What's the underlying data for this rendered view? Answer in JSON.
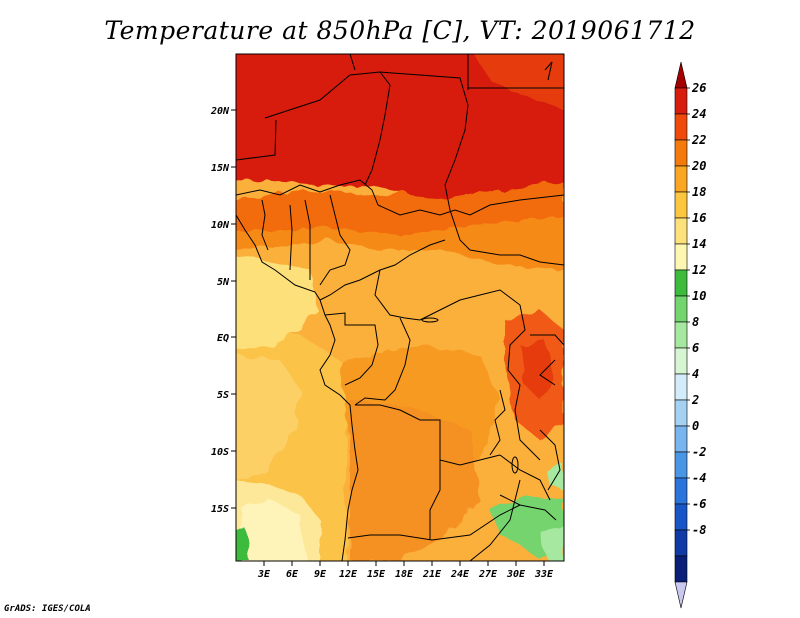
{
  "title": "Temperature at 850hPa [C], VT: 2019061712",
  "credit": "GrADS: IGES/COLA",
  "map": {
    "lon_ticks": [
      "3E",
      "6E",
      "9E",
      "12E",
      "15E",
      "18E",
      "21E",
      "24E",
      "27E",
      "30E",
      "33E"
    ],
    "lat_ticks": [
      "20N",
      "15N",
      "10N",
      "5N",
      "EQ",
      "5S",
      "10S",
      "15S"
    ]
  },
  "colorbar": {
    "labels": [
      "26",
      "24",
      "22",
      "20",
      "18",
      "16",
      "14",
      "12",
      "10",
      "8",
      "6",
      "4",
      "2",
      "0",
      "-2",
      "-4",
      "-6",
      "-8"
    ],
    "colors": [
      "#a50000",
      "#d71e0e",
      "#f04a0a",
      "#f57a0c",
      "#fba623",
      "#fcc63e",
      "#fde27c",
      "#fef7b2",
      "#3cbb3c",
      "#74d46e",
      "#a6e8a0",
      "#d6f5d2",
      "#d2ecfa",
      "#a5d2f3",
      "#78b4ee",
      "#4a96e6",
      "#2a74dc",
      "#1856c8",
      "#103aa6",
      "#0a1f78",
      "#c8c8f0"
    ]
  }
}
